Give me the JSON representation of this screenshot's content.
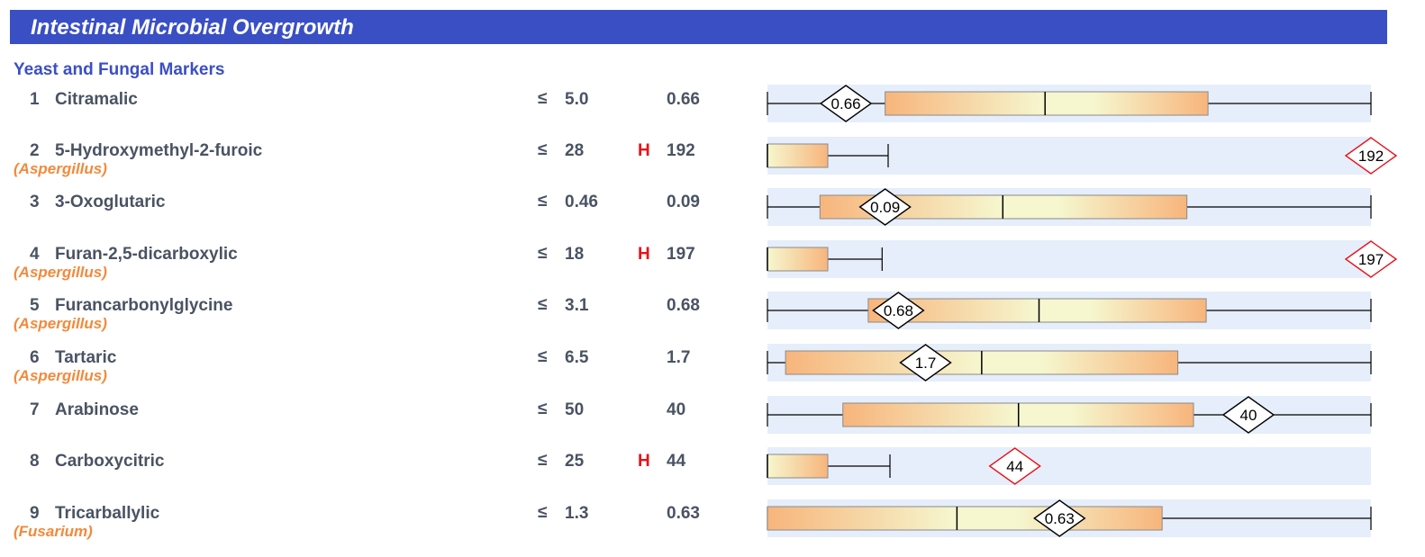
{
  "header": {
    "title": "Intestinal Microbial Overgrowth"
  },
  "section": {
    "title": "Yeast and Fungal Markers"
  },
  "rows": [
    {
      "num": "1",
      "name": "Citramalic",
      "organism": "",
      "le": "≤",
      "ref": "5.0",
      "flag": "",
      "value": "0.66"
    },
    {
      "num": "2",
      "name": "5-Hydroxymethyl-2-furoic",
      "organism": "(Aspergillus)",
      "le": "≤",
      "ref": "28",
      "flag": "H",
      "value": "192"
    },
    {
      "num": "3",
      "name": "3-Oxoglutaric",
      "organism": "",
      "le": "≤",
      "ref": "0.46",
      "flag": "",
      "value": "0.09"
    },
    {
      "num": "4",
      "name": "Furan-2,5-dicarboxylic",
      "organism": "(Aspergillus)",
      "le": "≤",
      "ref": "18",
      "flag": "H",
      "value": "197"
    },
    {
      "num": "5",
      "name": "Furancarbonylglycine",
      "organism": "(Aspergillus)",
      "le": "≤",
      "ref": "3.1",
      "flag": "",
      "value": "0.68"
    },
    {
      "num": "6",
      "name": "Tartaric",
      "organism": "(Aspergillus)",
      "le": "≤",
      "ref": "6.5",
      "flag": "",
      "value": "1.7"
    },
    {
      "num": "7",
      "name": "Arabinose",
      "organism": "",
      "le": "≤",
      "ref": "50",
      "flag": "",
      "value": "40"
    },
    {
      "num": "8",
      "name": "Carboxycitric",
      "organism": "",
      "le": "≤",
      "ref": "25",
      "flag": "H",
      "value": "44"
    },
    {
      "num": "9",
      "name": "Tricarballylic",
      "organism": "(Fusarium)",
      "le": "≤",
      "ref": "1.3",
      "flag": "",
      "value": "0.63"
    }
  ],
  "chart_data": {
    "type": "box",
    "note": "Each row is a horizontal box plot of the reference population on a common scale; the diamond marks the patient value. Positions are fractions of the plot width.",
    "colors": {
      "band": "#e6eefb",
      "box_outer": "#f7b57c",
      "box_inner": "#f6f7cf",
      "box_border": "#8a8a8a",
      "marker_normal_border": "#000000",
      "marker_high_border": "#e8121a",
      "header_bg": "#3a4fc4",
      "organism_text": "#f28a3c",
      "flag_text": "#e8121a"
    },
    "series": [
      {
        "label": "0.66",
        "high": false,
        "whisker_min": 0.0,
        "box_left": 0.195,
        "median": 0.46,
        "box_right": 0.73,
        "whisker_max": 1.0,
        "marker": 0.13
      },
      {
        "label": "192",
        "high": true,
        "whisker_min": 0.0,
        "box_left": 0.0,
        "median": 0.0,
        "box_right": 0.1,
        "whisker_max": 0.2,
        "marker": 1.0
      },
      {
        "label": "0.09",
        "high": false,
        "whisker_min": 0.0,
        "box_left": 0.087,
        "median": 0.39,
        "box_right": 0.695,
        "whisker_max": 1.0,
        "marker": 0.195
      },
      {
        "label": "197",
        "high": true,
        "whisker_min": 0.0,
        "box_left": 0.0,
        "median": 0.0,
        "box_right": 0.1,
        "whisker_max": 0.19,
        "marker": 1.0
      },
      {
        "label": "0.68",
        "high": false,
        "whisker_min": 0.0,
        "box_left": 0.167,
        "median": 0.45,
        "box_right": 0.727,
        "whisker_max": 1.0,
        "marker": 0.217
      },
      {
        "label": "1.7",
        "high": false,
        "whisker_min": 0.0,
        "box_left": 0.03,
        "median": 0.355,
        "box_right": 0.68,
        "whisker_max": 1.0,
        "marker": 0.262
      },
      {
        "label": "40",
        "high": false,
        "whisker_min": 0.0,
        "box_left": 0.125,
        "median": 0.416,
        "box_right": 0.706,
        "whisker_max": 1.0,
        "marker": 0.797
      },
      {
        "label": "44",
        "high": true,
        "whisker_min": 0.0,
        "box_left": 0.0,
        "median": 0.0,
        "box_right": 0.1,
        "whisker_max": 0.203,
        "marker": 0.41
      },
      {
        "label": "0.63",
        "high": false,
        "whisker_min": 0.0,
        "box_left": 0.0,
        "median": 0.314,
        "box_right": 0.654,
        "whisker_max": 1.0,
        "marker": 0.484
      }
    ]
  }
}
